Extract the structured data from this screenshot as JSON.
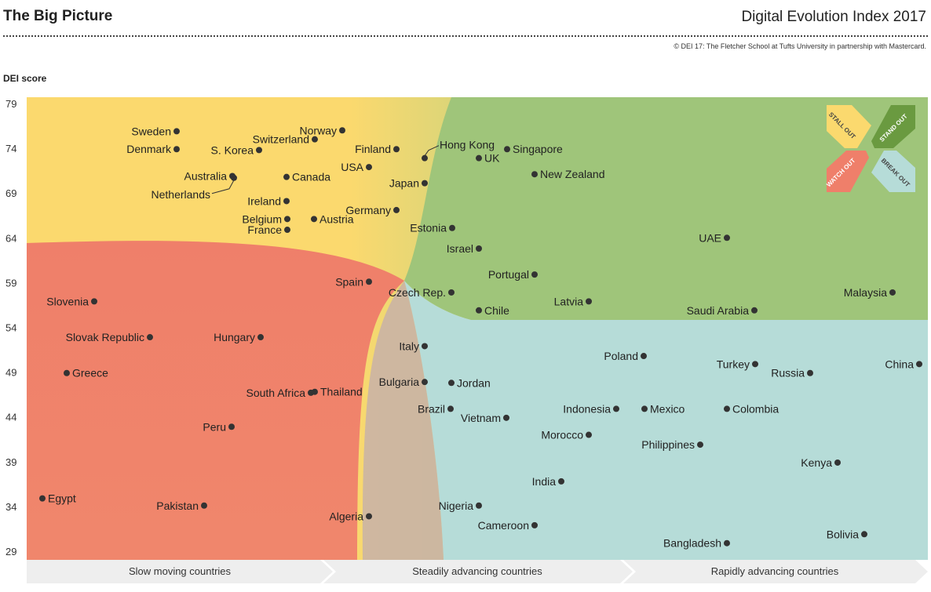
{
  "header": {
    "title": "The Big Picture",
    "index_title": "Digital Evolution Index 2017",
    "credit": "© DEI 17:  The Fletcher School at Tufts University in partnership with Mastercard."
  },
  "colors": {
    "stall_out": "#fbd96e",
    "stand_out": "#9fc57a",
    "watch_out": "#ef7f6a",
    "break_out": "#b6dcd8",
    "point": "#333333",
    "band": "#eeeeee"
  },
  "legend": {
    "stall_out": "STALL OUT",
    "stand_out": "STAND OUT",
    "watch_out": "WATCH OUT",
    "break_out": "BREAK OUT"
  },
  "chart_data": {
    "type": "scatter",
    "ylabel": "DEI score",
    "yticks": [
      79,
      74,
      69,
      64,
      59,
      54,
      49,
      44,
      39,
      34,
      29
    ],
    "ylim": [
      28.3,
      80
    ],
    "x_categories": [
      "Slow moving countries",
      "Steadily advancing countries",
      "Rapidly advancing countries"
    ],
    "x_axis_values_shown": false,
    "points": [
      {
        "name": "Sweden",
        "y": 75.9
      },
      {
        "name": "Denmark",
        "y": 73.9
      },
      {
        "name": "S. Korea",
        "y": 73.8
      },
      {
        "name": "Switzerland",
        "y": 75.0
      },
      {
        "name": "Norway",
        "y": 76.0
      },
      {
        "name": "Finland",
        "y": 73.9
      },
      {
        "name": "Hong Kong",
        "y": 72.9
      },
      {
        "name": "Singapore",
        "y": 73.9
      },
      {
        "name": "UK",
        "y": 72.9
      },
      {
        "name": "USA",
        "y": 71.9
      },
      {
        "name": "Australia",
        "y": 70.9
      },
      {
        "name": "Netherlands",
        "y": 70.7
      },
      {
        "name": "Canada",
        "y": 70.8
      },
      {
        "name": "New Zealand",
        "y": 71.1
      },
      {
        "name": "Japan",
        "y": 70.1
      },
      {
        "name": "Ireland",
        "y": 68.1
      },
      {
        "name": "Germany",
        "y": 67.1
      },
      {
        "name": "Belgium",
        "y": 66.1
      },
      {
        "name": "Austria",
        "y": 66.1
      },
      {
        "name": "France",
        "y": 64.9
      },
      {
        "name": "Estonia",
        "y": 65.1
      },
      {
        "name": "Israel",
        "y": 62.8
      },
      {
        "name": "UAE",
        "y": 64.0
      },
      {
        "name": "Portugal",
        "y": 59.9
      },
      {
        "name": "Spain",
        "y": 59.1
      },
      {
        "name": "Czech Rep.",
        "y": 57.9
      },
      {
        "name": "Slovenia",
        "y": 56.9
      },
      {
        "name": "Latvia",
        "y": 56.9
      },
      {
        "name": "Chile",
        "y": 55.9
      },
      {
        "name": "Saudi Arabia",
        "y": 55.9
      },
      {
        "name": "Malaysia",
        "y": 57.9
      },
      {
        "name": "Slovak Republic",
        "y": 52.9
      },
      {
        "name": "Hungary",
        "y": 52.9
      },
      {
        "name": "Italy",
        "y": 51.9
      },
      {
        "name": "Poland",
        "y": 50.8
      },
      {
        "name": "Turkey",
        "y": 49.9
      },
      {
        "name": "China",
        "y": 49.9
      },
      {
        "name": "Russia",
        "y": 48.9
      },
      {
        "name": "Greece",
        "y": 48.9
      },
      {
        "name": "Bulgaria",
        "y": 47.9
      },
      {
        "name": "Jordan",
        "y": 47.8
      },
      {
        "name": "South Africa",
        "y": 46.7
      },
      {
        "name": "Thailand",
        "y": 46.8
      },
      {
        "name": "Brazil",
        "y": 44.9
      },
      {
        "name": "Indonesia",
        "y": 44.9
      },
      {
        "name": "Mexico",
        "y": 44.9
      },
      {
        "name": "Colombia",
        "y": 44.9
      },
      {
        "name": "Vietnam",
        "y": 43.9
      },
      {
        "name": "Peru",
        "y": 42.9
      },
      {
        "name": "Morocco",
        "y": 42.0
      },
      {
        "name": "Philippines",
        "y": 40.9
      },
      {
        "name": "Kenya",
        "y": 38.9
      },
      {
        "name": "India",
        "y": 36.8
      },
      {
        "name": "Egypt",
        "y": 34.9
      },
      {
        "name": "Pakistan",
        "y": 34.1
      },
      {
        "name": "Nigeria",
        "y": 34.1
      },
      {
        "name": "Algeria",
        "y": 32.9
      },
      {
        "name": "Cameroon",
        "y": 31.9
      },
      {
        "name": "Bolivia",
        "y": 30.9
      },
      {
        "name": "Bangladesh",
        "y": 29.9
      }
    ]
  }
}
